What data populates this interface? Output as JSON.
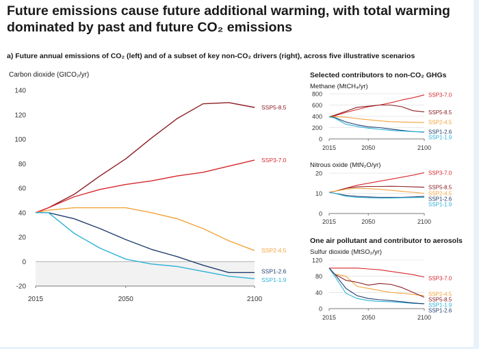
{
  "header": {
    "title_line1": "Future emissions cause future additional warming, with total warming",
    "title_line2": "dominated by past and future CO₂ emissions",
    "subtitle": "a) Future annual emissions of CO₂ (left) and of a subset of key non-CO₂ drivers (right), across five illustrative scenarios"
  },
  "sections": {
    "ghg_heading": "Selected contributors to non-CO₂ GHGs",
    "aerosol_heading": "One air pollutant and contributor to aerosols"
  },
  "colors": {
    "SSP1-1.9": "#2bb1d8",
    "SSP1-2.6": "#1e3d6c",
    "SSP2-4.5": "#f2a33a",
    "SSP3-7.0": "#d7262b",
    "SSP5-8.5": "#8b1d24",
    "negative_band": "#f2f2f2",
    "axis": "#7a7a7a",
    "grid": "#e0e0e0"
  },
  "chart_data": [
    {
      "id": "co2",
      "type": "line",
      "title": "Carbon dioxide (GtCO₂/yr)",
      "xlim": [
        2015,
        2100
      ],
      "ylim": [
        -20,
        140
      ],
      "xticks": [
        2015,
        2050,
        2100
      ],
      "yticks": [
        -20,
        0,
        20,
        40,
        60,
        80,
        100,
        120,
        140
      ],
      "grid": false,
      "negative_region_shaded": true,
      "series": [
        {
          "name": "SSP5-8.5",
          "label_y": 126,
          "x": [
            2015,
            2020,
            2030,
            2040,
            2050,
            2060,
            2070,
            2080,
            2090,
            2100
          ],
          "y": [
            40,
            44,
            55,
            70,
            84,
            101,
            117,
            129,
            130,
            126
          ]
        },
        {
          "name": "SSP3-7.0",
          "label_y": 83,
          "x": [
            2015,
            2020,
            2030,
            2040,
            2050,
            2060,
            2070,
            2080,
            2090,
            2100
          ],
          "y": [
            40,
            44,
            53,
            59,
            63,
            66,
            70,
            73,
            78,
            83
          ]
        },
        {
          "name": "SSP2-4.5",
          "label_y": 9,
          "x": [
            2015,
            2020,
            2030,
            2040,
            2050,
            2060,
            2070,
            2080,
            2090,
            2100
          ],
          "y": [
            40,
            42,
            44,
            44,
            44,
            40,
            35,
            27,
            17,
            9
          ]
        },
        {
          "name": "SSP1-2.6",
          "label_y": -8,
          "x": [
            2015,
            2020,
            2030,
            2040,
            2050,
            2060,
            2070,
            2080,
            2090,
            2100
          ],
          "y": [
            40,
            40,
            35,
            27,
            18,
            10,
            4,
            -3,
            -9,
            -9
          ]
        },
        {
          "name": "SSP1-1.9",
          "label_y": -15,
          "x": [
            2015,
            2020,
            2030,
            2040,
            2050,
            2060,
            2070,
            2080,
            2090,
            2100
          ],
          "y": [
            40,
            40,
            23,
            11,
            2,
            -2,
            -4,
            -8,
            -12,
            -14
          ]
        }
      ]
    },
    {
      "id": "methane",
      "type": "line",
      "title": "Methane (MtCH₄/yr)",
      "xlim": [
        2015,
        2100
      ],
      "ylim": [
        0,
        800
      ],
      "xticks": [
        2015,
        2050,
        2100
      ],
      "yticks": [
        0,
        200,
        400,
        600,
        800
      ],
      "grid": true,
      "series": [
        {
          "name": "SSP3-7.0",
          "label_y": 780,
          "x": [
            2015,
            2020,
            2030,
            2040,
            2050,
            2060,
            2070,
            2080,
            2090,
            2100
          ],
          "y": [
            390,
            410,
            470,
            520,
            570,
            600,
            640,
            690,
            730,
            780
          ]
        },
        {
          "name": "SSP5-8.5",
          "label_y": 470,
          "x": [
            2015,
            2020,
            2030,
            2040,
            2050,
            2060,
            2070,
            2080,
            2090,
            2100
          ],
          "y": [
            390,
            420,
            490,
            560,
            580,
            600,
            600,
            570,
            500,
            480
          ]
        },
        {
          "name": "SSP2-4.5",
          "label_y": 300,
          "x": [
            2015,
            2020,
            2030,
            2040,
            2050,
            2060,
            2070,
            2080,
            2090,
            2100
          ],
          "y": [
            390,
            395,
            385,
            360,
            340,
            320,
            305,
            300,
            295,
            290
          ]
        },
        {
          "name": "SSP1-2.6",
          "label_y": 130,
          "x": [
            2015,
            2020,
            2030,
            2040,
            2050,
            2060,
            2070,
            2080,
            2090,
            2100
          ],
          "y": [
            390,
            380,
            300,
            250,
            215,
            200,
            175,
            150,
            130,
            120
          ]
        },
        {
          "name": "SSP1-1.9",
          "label_y": 40,
          "x": [
            2015,
            2020,
            2030,
            2040,
            2050,
            2060,
            2070,
            2080,
            2090,
            2100
          ],
          "y": [
            390,
            370,
            260,
            220,
            190,
            170,
            150,
            140,
            130,
            125
          ]
        }
      ]
    },
    {
      "id": "n2o",
      "type": "line",
      "title": "Nitrous oxide (MtN₂O/yr)",
      "xlim": [
        2015,
        2100
      ],
      "ylim": [
        0,
        20
      ],
      "xticks": [
        2015,
        2050,
        2100
      ],
      "yticks": [
        0,
        10,
        20
      ],
      "grid": true,
      "series": [
        {
          "name": "SSP3-7.0",
          "label_y": 20.2,
          "x": [
            2015,
            2020,
            2030,
            2040,
            2050,
            2060,
            2070,
            2080,
            2090,
            2100
          ],
          "y": [
            10.5,
            11,
            12.5,
            14,
            15,
            16,
            17,
            18,
            19,
            20.2
          ]
        },
        {
          "name": "SSP5-8.5",
          "label_y": 13,
          "x": [
            2015,
            2020,
            2030,
            2040,
            2050,
            2060,
            2070,
            2080,
            2090,
            2100
          ],
          "y": [
            10.5,
            11,
            12.5,
            13.2,
            13.4,
            13.4,
            13.5,
            13.4,
            13.2,
            13
          ]
        },
        {
          "name": "SSP2-4.5",
          "label_y": 10,
          "x": [
            2015,
            2020,
            2030,
            2040,
            2050,
            2060,
            2070,
            2080,
            2090,
            2100
          ],
          "y": [
            10.5,
            11,
            12,
            12.5,
            12.3,
            12,
            11.5,
            11,
            10.5,
            10
          ]
        },
        {
          "name": "SSP1-2.6",
          "label_y": 7.6,
          "x": [
            2015,
            2020,
            2030,
            2040,
            2050,
            2060,
            2070,
            2080,
            2090,
            2100
          ],
          "y": [
            10.5,
            10,
            9,
            8.5,
            8.2,
            8,
            8,
            8,
            8.2,
            8.5
          ]
        },
        {
          "name": "SSP1-1.9",
          "label_y": 5.2,
          "x": [
            2015,
            2020,
            2030,
            2040,
            2050,
            2060,
            2070,
            2080,
            2090,
            2100
          ],
          "y": [
            10.5,
            10,
            8.5,
            8,
            7.8,
            7.7,
            7.7,
            7.8,
            7.9,
            8
          ]
        }
      ]
    },
    {
      "id": "so2",
      "type": "line",
      "title": "Sulfur dioxide (MtSO₂/yr)",
      "xlim": [
        2015,
        2100
      ],
      "ylim": [
        0,
        120
      ],
      "xticks": [
        2015,
        2050,
        2100
      ],
      "yticks": [
        0,
        40,
        80,
        120
      ],
      "grid": true,
      "series": [
        {
          "name": "SSP3-7.0",
          "label_y": 75,
          "x": [
            2015,
            2020,
            2030,
            2040,
            2050,
            2060,
            2070,
            2080,
            2090,
            2100
          ],
          "y": [
            100,
            100,
            100,
            100,
            98,
            96,
            92,
            88,
            84,
            78
          ]
        },
        {
          "name": "SSP2-4.5",
          "label_y": 36,
          "x": [
            2015,
            2020,
            2030,
            2040,
            2050,
            2060,
            2070,
            2080,
            2090,
            2100
          ],
          "y": [
            100,
            85,
            80,
            55,
            50,
            45,
            40,
            38,
            35,
            32
          ]
        },
        {
          "name": "SSP5-8.5",
          "label_y": 27,
          "x": [
            2015,
            2020,
            2030,
            2040,
            2050,
            2060,
            2070,
            2080,
            2090,
            2100
          ],
          "y": [
            100,
            85,
            70,
            65,
            58,
            62,
            60,
            52,
            40,
            28
          ]
        },
        {
          "name": "SSP1-1.9",
          "label_y": 13,
          "x": [
            2015,
            2020,
            2030,
            2040,
            2050,
            2060,
            2070,
            2080,
            2090,
            2100
          ],
          "y": [
            100,
            80,
            38,
            25,
            20,
            18,
            17,
            15,
            13,
            12
          ]
        },
        {
          "name": "SSP1-2.6",
          "label_y": 4,
          "x": [
            2015,
            2020,
            2030,
            2040,
            2050,
            2060,
            2070,
            2080,
            2090,
            2100
          ],
          "y": [
            100,
            85,
            50,
            32,
            25,
            22,
            20,
            17,
            14,
            12
          ]
        }
      ]
    }
  ]
}
